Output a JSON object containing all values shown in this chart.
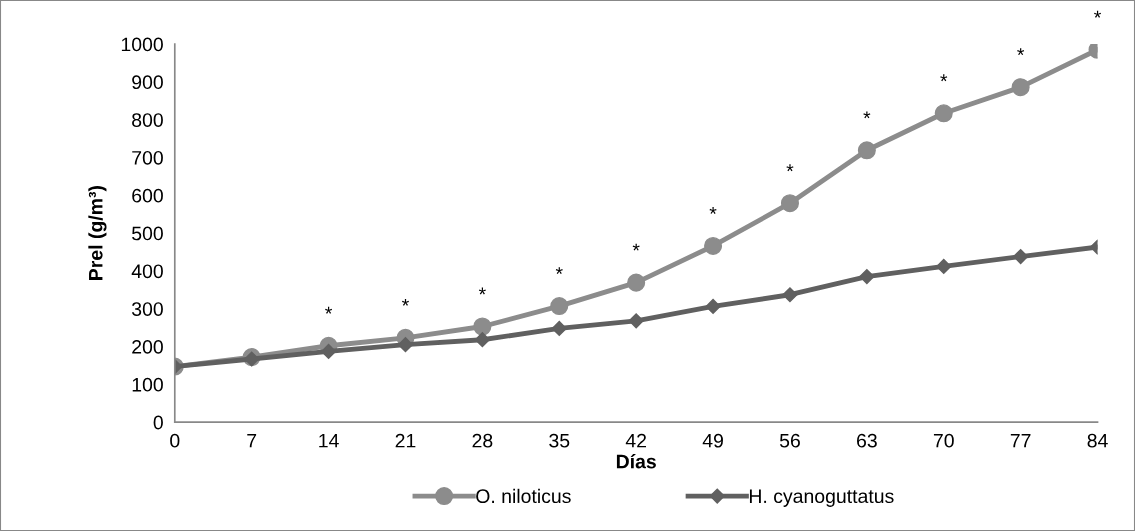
{
  "chart_data": {
    "type": "line",
    "xlabel": "Días",
    "ylabel": "Prel (g/m³)",
    "x": [
      0,
      7,
      14,
      21,
      28,
      35,
      42,
      49,
      56,
      63,
      70,
      77,
      84
    ],
    "xlim": [
      0,
      84
    ],
    "xticks": [
      0,
      7,
      14,
      21,
      28,
      35,
      42,
      49,
      56,
      63,
      70,
      77,
      84
    ],
    "ylim": [
      0,
      1000
    ],
    "yticks": [
      0,
      100,
      200,
      300,
      400,
      500,
      600,
      700,
      800,
      900,
      1000
    ],
    "grid": false,
    "legend": "bottom",
    "series": [
      {
        "name": "O. niloticus",
        "color": "#8c8c8c",
        "marker": "circle",
        "values": [
          147,
          172,
          202,
          223,
          253,
          307,
          369,
          466,
          579,
          719,
          817,
          886,
          985
        ]
      },
      {
        "name": "H. cyanoguttatus",
        "color": "#606060",
        "marker": "diamond",
        "values": [
          147,
          167,
          187,
          205,
          218,
          248,
          268,
          306,
          337,
          385,
          412,
          438,
          463
        ]
      }
    ],
    "annotations": [
      {
        "text": "*",
        "x": 14,
        "y": 202
      },
      {
        "text": "*",
        "x": 21,
        "y": 223
      },
      {
        "text": "*",
        "x": 28,
        "y": 253
      },
      {
        "text": "*",
        "x": 35,
        "y": 307
      },
      {
        "text": "*",
        "x": 42,
        "y": 369
      },
      {
        "text": "*",
        "x": 49,
        "y": 466
      },
      {
        "text": "*",
        "x": 56,
        "y": 579
      },
      {
        "text": "*",
        "x": 63,
        "y": 719
      },
      {
        "text": "*",
        "x": 70,
        "y": 817
      },
      {
        "text": "*",
        "x": 77,
        "y": 886
      },
      {
        "text": "*",
        "x": 84,
        "y": 985
      }
    ]
  }
}
